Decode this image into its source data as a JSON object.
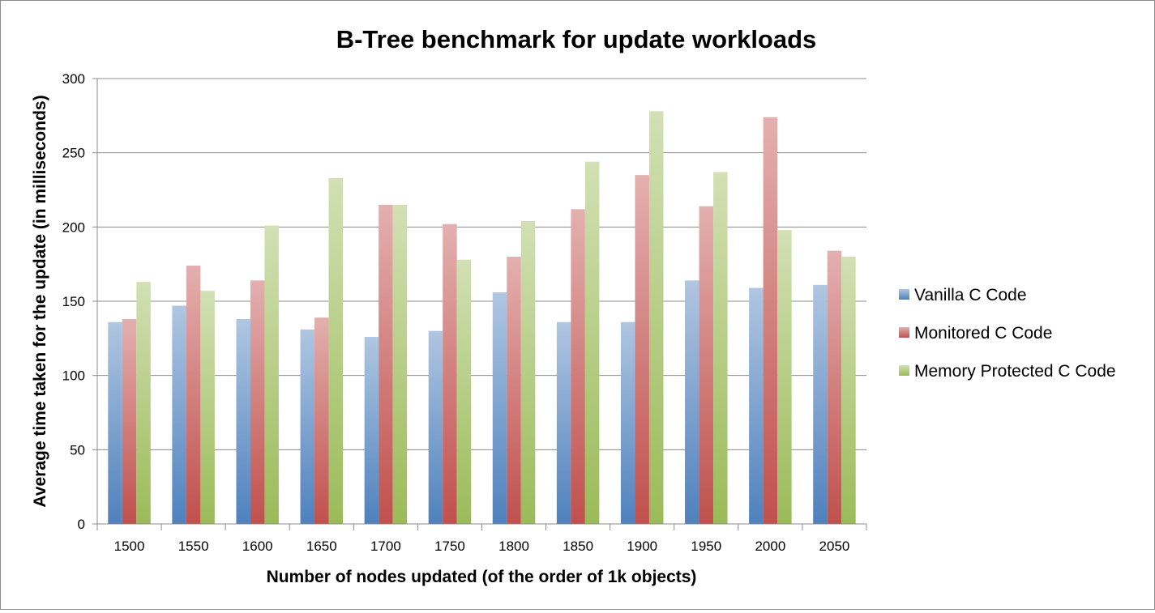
{
  "chart_data": {
    "type": "bar",
    "title": "B-Tree benchmark for update workloads",
    "xlabel": "Number of nodes updated (of the order of 1k objects)",
    "ylabel": "Average time taken for the update (in milliseconds)",
    "categories": [
      "1500",
      "1550",
      "1600",
      "1650",
      "1700",
      "1750",
      "1800",
      "1850",
      "1900",
      "1950",
      "2000",
      "2050"
    ],
    "ylim": [
      0,
      300
    ],
    "yticks": [
      0,
      50,
      100,
      150,
      200,
      250,
      300
    ],
    "grid": true,
    "legend_position": "right",
    "series": [
      {
        "name": "Vanilla C Code",
        "color": "#4f81bd",
        "values": [
          136,
          147,
          138,
          131,
          126,
          130,
          156,
          136,
          136,
          164,
          159,
          161
        ]
      },
      {
        "name": "Monitored C Code",
        "color": "#c0504d",
        "values": [
          138,
          174,
          164,
          139,
          215,
          202,
          180,
          212,
          235,
          214,
          274,
          184
        ]
      },
      {
        "name": "Memory Protected C Code",
        "color": "#9bbb59",
        "values": [
          163,
          157,
          201,
          233,
          215,
          178,
          204,
          244,
          278,
          237,
          198,
          180
        ]
      }
    ]
  }
}
